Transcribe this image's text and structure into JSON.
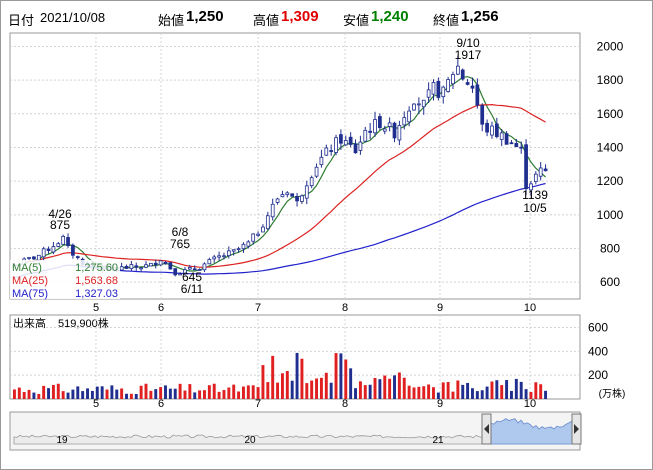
{
  "header": {
    "date_label": "日付",
    "date": "2021/10/08",
    "open_label": "始値",
    "open": "1,250",
    "high_label": "高値",
    "high": "1,309",
    "low_label": "安値",
    "low": "1,240",
    "close_label": "終値",
    "close": "1,256"
  },
  "legend": {
    "ma5": "MA(5)",
    "ma5_val": "1,275.60",
    "ma25": "MA(25)",
    "ma25_val": "1,563.68",
    "ma75": "MA(75)",
    "ma75_val": "1,327.03"
  },
  "volume_panel": {
    "label": "出来高",
    "value": "519,900株",
    "unit": "(万株)"
  },
  "colors": {
    "up_candle": "#ffffff",
    "down_candle": "#1f2e8f",
    "ma5": "#2e7d32",
    "ma25": "#dd2222",
    "ma75": "#2222cc",
    "volume_up": "#e02020",
    "volume_down": "#1f2e8f",
    "high_text": "#e00000",
    "low_text": "#008000",
    "navigator_fill": "#aec8ee"
  },
  "chart_data": {
    "type": "candlestick",
    "y_ticks": [
      600,
      800,
      1000,
      1200,
      1400,
      1600,
      1800,
      2000
    ],
    "ylim": [
      500,
      2080
    ],
    "x_month_labels": [
      "5",
      "6",
      "7",
      "8",
      "9",
      "10"
    ],
    "annotations": [
      {
        "date": "4/26",
        "value": "875"
      },
      {
        "date": "6/8",
        "value": "765"
      },
      {
        "date": "6/11",
        "value": "645"
      },
      {
        "date": "9/10",
        "value": "1917"
      },
      {
        "date": "10/5",
        "value": "1139"
      }
    ],
    "waypoints": [
      [
        0,
        700
      ],
      [
        5,
        760
      ],
      [
        8,
        820
      ],
      [
        10,
        860
      ],
      [
        11,
        800
      ],
      [
        13,
        740
      ],
      [
        15,
        700
      ],
      [
        20,
        680
      ],
      [
        25,
        690
      ],
      [
        28,
        700
      ],
      [
        30,
        740
      ],
      [
        31,
        710
      ],
      [
        33,
        660
      ],
      [
        35,
        665
      ],
      [
        38,
        690
      ],
      [
        40,
        720
      ],
      [
        42,
        750
      ],
      [
        45,
        780
      ],
      [
        48,
        830
      ],
      [
        50,
        900
      ],
      [
        52,
        1000
      ],
      [
        54,
        1100
      ],
      [
        56,
        1150
      ],
      [
        58,
        1070
      ],
      [
        60,
        1200
      ],
      [
        62,
        1300
      ],
      [
        65,
        1400
      ],
      [
        67,
        1450
      ],
      [
        70,
        1380
      ],
      [
        72,
        1500
      ],
      [
        75,
        1550
      ],
      [
        78,
        1490
      ],
      [
        80,
        1600
      ],
      [
        82,
        1700
      ],
      [
        84,
        1650
      ],
      [
        86,
        1750
      ],
      [
        88,
        1720
      ],
      [
        90,
        1850
      ],
      [
        91,
        1880
      ],
      [
        92,
        1820
      ],
      [
        94,
        1760
      ],
      [
        95,
        1650
      ],
      [
        96,
        1520
      ],
      [
        98,
        1500
      ],
      [
        100,
        1470
      ],
      [
        102,
        1430
      ],
      [
        104,
        1380
      ],
      [
        105,
        1180
      ],
      [
        106,
        1200
      ],
      [
        108,
        1260
      ],
      [
        109,
        1256
      ]
    ],
    "volume_ticks": [
      200,
      400,
      600
    ],
    "volume_max": 680,
    "navigator_labels": [
      "19",
      "20",
      "21"
    ]
  }
}
